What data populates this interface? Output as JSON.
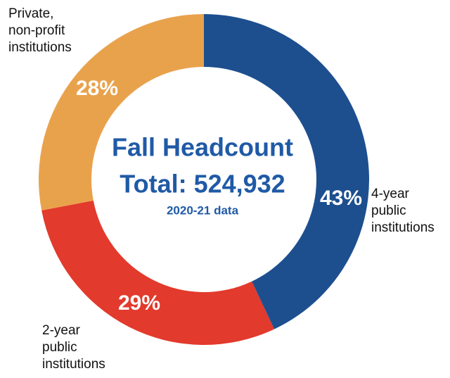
{
  "chart_data": {
    "type": "donut",
    "title": "Fall Headcount",
    "subtitle": "Total: 524,932",
    "note": "2020-21 data",
    "categories": [
      "4-year public institutions",
      "2-year public institutions",
      "Private, non-profit institutions"
    ],
    "values": [
      43,
      29,
      28
    ],
    "value_labels": [
      "43%",
      "29%",
      "28%"
    ],
    "colors": [
      "#1d4f8f",
      "#e23a2c",
      "#e9a24c"
    ]
  }
}
